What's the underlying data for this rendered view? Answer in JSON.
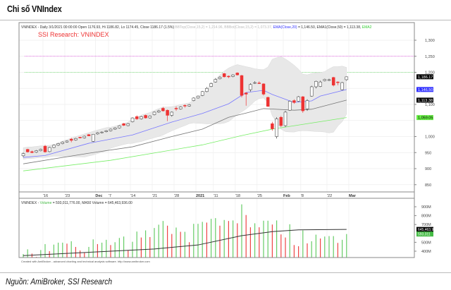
{
  "page": {
    "title": "Chi số VNIndex",
    "source": "Nguồn: AmiBroker, SSI Research"
  },
  "chart_data": [
    {
      "type": "candlestick",
      "title": "SSI Research: VNINDEX",
      "header_main": "VNINDEX - Daily 3/1/2021 00:00:00 Open 1176.93, Hi 1186.82, Lo 1174.45, Close 1186.17 (1.5%)",
      "header_bb": "BBTop(Close,15,2) = 1,214.96, BBBot(Close,15,2) = 1,073.37,",
      "header_ema20": "EMA(Close,20)",
      "header_ema20_val": "= 1,146.50,",
      "header_ema50": "EMA1(Close,50) = 1,113.38,",
      "header_ema2": "EMA2",
      "ylim": [
        820,
        1330
      ],
      "y_ticks": [
        "850",
        "900",
        "950",
        "1,000",
        "1,100",
        "1,200",
        "1,250",
        "1,300"
      ],
      "y_tick_values": [
        850,
        900,
        950,
        1000,
        1100,
        1200,
        1250,
        1300
      ],
      "x_ticks": [
        "'16",
        "'23",
        "Dec",
        "'7",
        "'14",
        "'21",
        "'28",
        "2021",
        "'11",
        "'18",
        "'25",
        "Feb",
        "'8",
        "'22",
        "Mar"
      ],
      "x_tick_index": [
        5,
        10,
        17,
        20,
        25,
        30,
        35,
        40,
        44,
        49,
        54,
        60,
        64,
        70,
        75
      ],
      "reference_lines": [
        {
          "value": 1250,
          "color": "#e040e0"
        },
        {
          "value": 1200,
          "color": "#66dd66"
        }
      ],
      "value_tags": [
        {
          "label": "1,186.17",
          "value": 1186.17,
          "color": "#000000"
        },
        {
          "label": "1,146.50",
          "value": 1146.5,
          "color": "#3333ff"
        },
        {
          "label": "1,113.38",
          "value": 1113.38,
          "color": "#000000"
        },
        {
          "label": "1,059.05",
          "value": 1059.05,
          "color": "#66ee44"
        }
      ],
      "ohlc": [
        [
          940,
          950,
          936,
          947
        ],
        [
          960,
          962,
          950,
          952
        ],
        [
          953,
          956,
          948,
          950
        ],
        [
          951,
          958,
          949,
          956
        ],
        [
          956,
          962,
          954,
          960
        ],
        [
          970,
          974,
          950,
          952
        ],
        [
          953,
          968,
          951,
          966
        ],
        [
          966,
          975,
          964,
          973
        ],
        [
          973,
          980,
          971,
          978
        ],
        [
          978,
          985,
          976,
          983
        ],
        [
          983,
          988,
          981,
          986
        ],
        [
          992,
          996,
          982,
          988
        ],
        [
          989,
          996,
          987,
          994
        ],
        [
          998,
          999,
          994,
          996
        ],
        [
          996,
          1003,
          994,
          1001
        ],
        [
          1006,
          1008,
          1001,
          1002
        ],
        [
          985,
          1008,
          983,
          1007
        ],
        [
          1008,
          1014,
          1006,
          1012
        ],
        [
          1012,
          1016,
          1010,
          1014
        ],
        [
          1015,
          1020,
          1013,
          1018
        ],
        [
          1018,
          1025,
          1016,
          1023
        ],
        [
          1023,
          1029,
          1021,
          1027
        ],
        [
          1027,
          1035,
          1025,
          1033
        ],
        [
          1040,
          1042,
          1033,
          1035
        ],
        [
          1034,
          1042,
          1032,
          1040
        ],
        [
          1046,
          1060,
          1044,
          1058
        ],
        [
          1062,
          1066,
          1052,
          1055
        ],
        [
          1055,
          1064,
          1053,
          1062
        ],
        [
          1066,
          1068,
          1056,
          1058
        ],
        [
          1058,
          1066,
          1056,
          1064
        ],
        [
          1068,
          1078,
          1066,
          1076
        ],
        [
          1076,
          1083,
          1074,
          1080
        ],
        [
          1088,
          1092,
          1078,
          1080
        ],
        [
          1082,
          1084,
          1048,
          1066
        ],
        [
          1066,
          1078,
          1062,
          1076
        ],
        [
          1088,
          1094,
          1080,
          1086
        ],
        [
          1086,
          1094,
          1084,
          1092
        ],
        [
          1097,
          1100,
          1090,
          1095
        ],
        [
          1095,
          1101,
          1093,
          1099
        ],
        [
          1112,
          1122,
          1110,
          1120
        ],
        [
          1120,
          1128,
          1118,
          1126
        ],
        [
          1128,
          1142,
          1126,
          1140
        ],
        [
          1140,
          1154,
          1138,
          1150
        ],
        [
          1156,
          1168,
          1154,
          1165
        ],
        [
          1170,
          1182,
          1168,
          1178
        ],
        [
          1180,
          1188,
          1178,
          1185
        ],
        [
          1196,
          1198,
          1184,
          1186
        ],
        [
          1188,
          1190,
          1182,
          1186
        ],
        [
          1187,
          1194,
          1185,
          1192
        ],
        [
          1198,
          1200,
          1190,
          1192
        ],
        [
          1190,
          1192,
          1122,
          1128
        ],
        [
          1136,
          1138,
          1096,
          1132
        ],
        [
          1146,
          1166,
          1140,
          1162
        ],
        [
          1166,
          1172,
          1164,
          1168
        ],
        [
          1167,
          1172,
          1164,
          1166
        ],
        [
          1164,
          1166,
          1128,
          1132
        ],
        [
          1122,
          1124,
          1092,
          1094
        ],
        [
          1040,
          1046,
          1018,
          1024
        ],
        [
          1000,
          1060,
          994,
          1055
        ],
        [
          1060,
          1064,
          1030,
          1034
        ],
        [
          1034,
          1080,
          1030,
          1076
        ],
        [
          1082,
          1112,
          1080,
          1110
        ],
        [
          1112,
          1116,
          1102,
          1106
        ],
        [
          1110,
          1126,
          1108,
          1124
        ],
        [
          1124,
          1126,
          1074,
          1080
        ],
        [
          1086,
          1116,
          1080,
          1112
        ],
        [
          1126,
          1158,
          1124,
          1155
        ],
        [
          1155,
          1174,
          1150,
          1172
        ],
        [
          1156,
          1174,
          1154,
          1170
        ],
        [
          1174,
          1180,
          1172,
          1178
        ],
        [
          1176,
          1180,
          1173,
          1177
        ],
        [
          1184,
          1186,
          1156,
          1160
        ],
        [
          1170,
          1172,
          1160,
          1168
        ],
        [
          1146,
          1170,
          1144,
          1168
        ],
        [
          1177,
          1187,
          1174,
          1186
        ]
      ],
      "bollinger_period": 15,
      "bollinger_k": 2,
      "ema20_points": [
        [
          0,
          935
        ],
        [
          5,
          941
        ],
        [
          15,
          979
        ],
        [
          25,
          1005
        ],
        [
          34,
          1045
        ],
        [
          41,
          1072
        ],
        [
          47,
          1102
        ],
        [
          51,
          1137
        ],
        [
          55,
          1144
        ],
        [
          57,
          1131
        ],
        [
          62,
          1106
        ],
        [
          66,
          1111
        ],
        [
          68,
          1126
        ],
        [
          74,
          1146.5
        ]
      ],
      "ema50_points": [
        [
          0,
          915
        ],
        [
          15,
          948
        ],
        [
          25,
          968
        ],
        [
          34,
          1000
        ],
        [
          41,
          1023
        ],
        [
          47,
          1060
        ],
        [
          51,
          1073
        ],
        [
          55,
          1087
        ],
        [
          62,
          1082
        ],
        [
          66,
          1085
        ],
        [
          74,
          1113.38
        ]
      ],
      "ema200_points": [
        [
          0,
          893
        ],
        [
          20,
          926
        ],
        [
          41,
          974
        ],
        [
          50,
          1003
        ],
        [
          57,
          1023
        ],
        [
          74,
          1059.05
        ]
      ],
      "colors": {
        "up": "#ffffff",
        "down": "#ee3333",
        "ema20": "#7777ff",
        "ema50": "#777777",
        "ema200": "#77ee66",
        "band": "#e8e8e8"
      }
    },
    {
      "type": "bar",
      "header_name": "VNINDEX -",
      "header_volume": "Volume",
      "header_values": "= 593,011,776.00, MA50 Volumn = 645,463,936.00",
      "footer": "Created with AmiBroker - advanced charting and technical analysis software. http://www.amibroker.com",
      "unit": "M",
      "y_ticks": [
        "400M",
        "500M",
        "700M",
        "800M",
        "900M"
      ],
      "y_tick_values": [
        400,
        500,
        700,
        800,
        900
      ],
      "value_tags": [
        {
          "label": "645,463,9",
          "value": 645,
          "color": "#000000"
        },
        {
          "label": "593,011",
          "value": 593,
          "color": "#44bb44"
        }
      ],
      "volume_millions": [
        368,
        421,
        373,
        336,
        413,
        480,
        400,
        474,
        496,
        496,
        485,
        512,
        448,
        408,
        381,
        448,
        533,
        480,
        496,
        528,
        469,
        501,
        549,
        565,
        408,
        506,
        621,
        554,
        634,
        559,
        661,
        698,
        740,
        687,
        594,
        666,
        618,
        618,
        501,
        708,
        708,
        730,
        722,
        764,
        772,
        687,
        751,
        740,
        746,
        714,
        927,
        807,
        669,
        714,
        669,
        743,
        743,
        700,
        746,
        589,
        554,
        703,
        469,
        456,
        634,
        488,
        512,
        586,
        543,
        565,
        570,
        570,
        493,
        528,
        593
      ],
      "volume_up": [
        1,
        1,
        0,
        0,
        1,
        1,
        0,
        1,
        1,
        1,
        0,
        1,
        0,
        0,
        0,
        1,
        1,
        0,
        1,
        1,
        0,
        1,
        1,
        1,
        0,
        1,
        1,
        0,
        1,
        0,
        1,
        1,
        1,
        0,
        0,
        1,
        0,
        1,
        0,
        1,
        1,
        1,
        0,
        1,
        1,
        0,
        1,
        0,
        1,
        0,
        1,
        0,
        0,
        1,
        0,
        1,
        1,
        0,
        1,
        0,
        0,
        1,
        0,
        0,
        1,
        0,
        1,
        1,
        0,
        1,
        1,
        1,
        0,
        1,
        1
      ],
      "ma50_points": [
        [
          0,
          350
        ],
        [
          10,
          375
        ],
        [
          20,
          400
        ],
        [
          30,
          425
        ],
        [
          40,
          470
        ],
        [
          50,
          575
        ],
        [
          57,
          620
        ],
        [
          63,
          640
        ],
        [
          74,
          645
        ]
      ],
      "colors": {
        "up": "#66cc66",
        "down": "#ee4444",
        "ma": "#333333"
      }
    }
  ]
}
